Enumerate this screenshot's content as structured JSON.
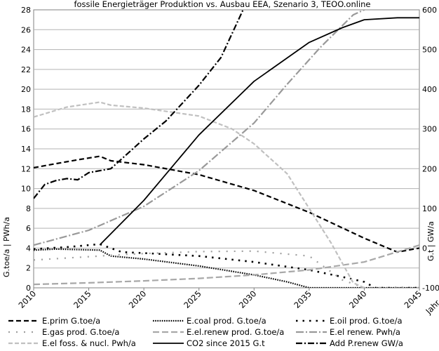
{
  "chart_data": {
    "type": "line",
    "title": "fossile Energieträger Produktion vs. Ausbau EEA, Szenario 3, TEOO.online",
    "xlabel": "Jahr",
    "ylabel_left": "G.toe/a | PWh/a",
    "ylabel_right": "G.t | GW/a",
    "xlim": [
      2010,
      2045
    ],
    "ylim_left": [
      0,
      28
    ],
    "ylim_right": [
      -100,
      600
    ],
    "x_ticks": [
      "2010",
      "2015",
      "2020",
      "2025",
      "2030",
      "2035",
      "2040",
      "2045"
    ],
    "y_left_ticks": [
      "0",
      "2",
      "4",
      "6",
      "8",
      "10",
      "12",
      "14",
      "16",
      "18",
      "20",
      "22",
      "24",
      "26",
      "28"
    ],
    "y_right_ticks": [
      "-100",
      "0",
      "100",
      "200",
      "300",
      "400",
      "500",
      "600"
    ],
    "grid": true,
    "legend_position": "bottom",
    "series": [
      {
        "name": "E.prim G.toe/a",
        "axis": "left",
        "color": "#000000",
        "dash": "7,4",
        "width": 2.2,
        "x": [
          2010,
          2012,
          2014,
          2016,
          2017,
          2020,
          2025,
          2030,
          2035,
          2040,
          2043,
          2045
        ],
        "y": [
          12.1,
          12.5,
          12.9,
          13.25,
          12.8,
          12.4,
          11.4,
          9.8,
          7.6,
          5.0,
          3.6,
          4.0
        ]
      },
      {
        "name": "E.coal prod. G.toe/a",
        "axis": "left",
        "color": "#000000",
        "dash": "1.6,1.6",
        "width": 2.2,
        "x": [
          2010,
          2012,
          2016,
          2017,
          2020,
          2025,
          2030,
          2033,
          2035,
          2045
        ],
        "y": [
          3.8,
          3.9,
          3.8,
          3.2,
          2.9,
          2.2,
          1.3,
          0.6,
          0.0,
          0.0
        ]
      },
      {
        "name": "E.oil prod. G.toe/a",
        "axis": "left",
        "color": "#000000",
        "dash": "2.5,7",
        "width": 2.6,
        "x": [
          2010,
          2013,
          2016,
          2018,
          2020,
          2025,
          2030,
          2035,
          2038,
          2040,
          2041,
          2045
        ],
        "y": [
          3.9,
          4.1,
          4.4,
          3.6,
          3.5,
          3.2,
          2.6,
          1.8,
          1.1,
          0.6,
          0.0,
          0.0
        ]
      },
      {
        "name": "E.gas prod. G.toe/a",
        "axis": "left",
        "color": "#a0a0a0",
        "dash": "2,9",
        "width": 2.2,
        "x": [
          2010,
          2016,
          2018,
          2020,
          2025,
          2030,
          2035,
          2038,
          2040,
          2045
        ],
        "y": [
          2.8,
          3.2,
          3.35,
          3.45,
          3.65,
          3.7,
          3.2,
          0.8,
          0.0,
          0.0
        ]
      },
      {
        "name": "E.el.renew prod. G.toe/a",
        "axis": "left",
        "color": "#a8a8a8",
        "dash": "9,4",
        "width": 2.2,
        "x": [
          2010,
          2015,
          2020,
          2025,
          2030,
          2035,
          2040,
          2045
        ],
        "y": [
          0.35,
          0.5,
          0.7,
          0.95,
          1.3,
          1.8,
          2.6,
          4.3
        ]
      },
      {
        "name": "E.el renew. Pwh/a",
        "axis": "left",
        "color": "#999999",
        "dash": "11,3,2,3",
        "width": 2.2,
        "x": [
          2010,
          2015,
          2020,
          2025,
          2030,
          2033,
          2036,
          2039,
          2041
        ],
        "y": [
          4.3,
          5.8,
          8.2,
          11.8,
          16.6,
          20.5,
          24.2,
          27.5,
          28.5
        ]
      },
      {
        "name": "E.el foss. & nucl. Pwh/a",
        "axis": "left",
        "color": "#c0c0c0",
        "dash": "6,3",
        "width": 2.2,
        "x": [
          2010,
          2013,
          2016,
          2017,
          2020,
          2025,
          2028,
          2030,
          2033,
          2035,
          2037,
          2039,
          2040
        ],
        "y": [
          17.2,
          18.2,
          18.7,
          18.4,
          18.1,
          17.3,
          16.0,
          14.5,
          11.5,
          8.0,
          4.5,
          0.5,
          0.0
        ]
      },
      {
        "name": "CO2 since 2015 G.t",
        "axis": "right",
        "color": "#000000",
        "dash": "",
        "width": 1.8,
        "x": [
          2016,
          2020,
          2025,
          2030,
          2035,
          2038,
          2040,
          2043,
          2045
        ],
        "y": [
          8,
          120,
          285,
          420,
          518,
          555,
          575,
          580,
          580
        ]
      },
      {
        "name": "Add P.renew GW/a",
        "axis": "right",
        "color": "#000000",
        "dash": "9,3,2,3",
        "width": 2.2,
        "x": [
          2010,
          2011,
          2012,
          2013,
          2014,
          2015,
          2017,
          2020,
          2022,
          2025,
          2027,
          2029
        ],
        "y": [
          125,
          160,
          170,
          175,
          172,
          190,
          200,
          275,
          320,
          410,
          480,
          600
        ]
      }
    ]
  }
}
